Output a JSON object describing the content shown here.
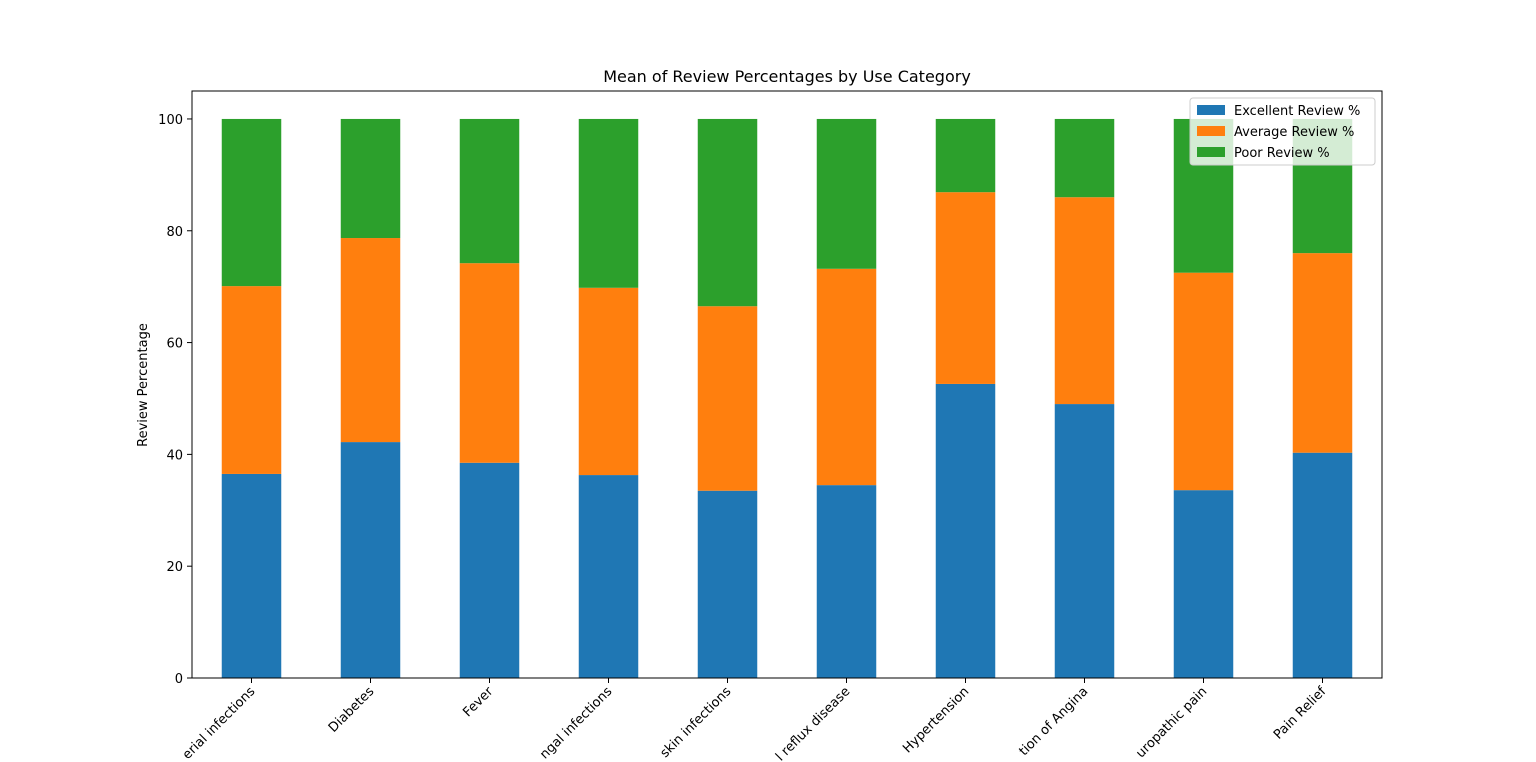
{
  "chart_data": {
    "type": "stacked-bar",
    "title": "Mean of Review Percentages by Use Category",
    "ylabel": "Review Percentage",
    "categories": [
      "erial infections",
      "Diabetes",
      "Fever",
      "ngal infections",
      "skin infections",
      "l reflux disease",
      "Hypertension",
      "tion of Angina",
      "uropathic pain",
      "Pain Relief"
    ],
    "series": [
      {
        "name": "Excellent Review %",
        "color": "#1f77b4",
        "values": [
          36.5,
          42.2,
          38.5,
          36.3,
          33.5,
          34.5,
          52.6,
          49.0,
          33.6,
          40.3
        ]
      },
      {
        "name": "Average Review %",
        "color": "#ff7f0e",
        "values": [
          33.6,
          36.5,
          35.7,
          33.5,
          33.0,
          38.7,
          34.3,
          37.0,
          38.9,
          35.7
        ]
      },
      {
        "name": "Poor Review %",
        "color": "#2ca02c",
        "values": [
          29.9,
          21.3,
          25.8,
          30.2,
          33.5,
          26.8,
          13.1,
          14.0,
          27.5,
          24.0
        ]
      }
    ],
    "ylim": [
      0,
      105
    ],
    "yticks": [
      0,
      20,
      40,
      60,
      80,
      100
    ],
    "legend": "upper right"
  }
}
